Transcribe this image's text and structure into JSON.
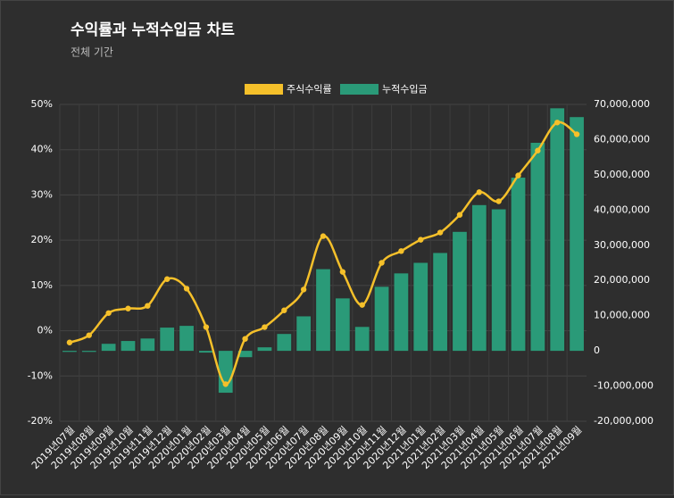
{
  "chart_data": {
    "type": "bar_line",
    "title": "수익률과 누적수입금 차트",
    "subtitle": "전체 기간",
    "categories": [
      "2019년07월",
      "2019년08월",
      "2019년09월",
      "2019년10월",
      "2019년11월",
      "2019년12월",
      "2020년01월",
      "2020년02월",
      "2020년03월",
      "2020년04월",
      "2020년05월",
      "2020년06월",
      "2020년07월",
      "2020년08월",
      "2020년09월",
      "2020년10월",
      "2020년11월",
      "2020년12월",
      "2021년01월",
      "2021년02월",
      "2021년03월",
      "2021년04월",
      "2021년05월",
      "2021년06월",
      "2021년07월",
      "2021년08월",
      "2021년09월"
    ],
    "series": [
      {
        "name": "주식수익률",
        "type": "line",
        "color": "#f5c02a",
        "axis": "y",
        "values": [
          -2.6,
          -1.0,
          3.9,
          4.9,
          5.5,
          11.4,
          9.3,
          0.8,
          -11.8,
          -1.8,
          0.8,
          4.5,
          9.1,
          20.9,
          13.0,
          5.7,
          15.0,
          17.6,
          20.1,
          21.7,
          25.6,
          30.6,
          28.6,
          34.3,
          39.8,
          46.0,
          43.4
        ]
      },
      {
        "name": "누적수입금",
        "type": "bar",
        "color": "#2a9a78",
        "axis": "y2",
        "values": [
          -300000,
          -300000,
          2000000,
          2800000,
          3500000,
          6600000,
          7100000,
          -500000,
          -11900000,
          -1800000,
          1000000,
          4800000,
          9800000,
          23200000,
          14900000,
          6800000,
          18200000,
          22000000,
          25000000,
          27800000,
          33800000,
          41400000,
          40200000,
          49200000,
          59100000,
          68900000,
          66400000
        ]
      }
    ],
    "ylim": [
      -20,
      50
    ],
    "yticks": [
      {
        "value": -20,
        "label": "-20%"
      },
      {
        "value": -10,
        "label": "-10%"
      },
      {
        "value": 0,
        "label": "0%"
      },
      {
        "value": 10,
        "label": "10%"
      },
      {
        "value": 20,
        "label": "20%"
      },
      {
        "value": 30,
        "label": "30%"
      },
      {
        "value": 40,
        "label": "40%"
      },
      {
        "value": 50,
        "label": "50%"
      }
    ],
    "y2lim": [
      -20000000,
      70000000
    ],
    "y2ticks": [
      {
        "value": -20000000,
        "label": "-20,000,000"
      },
      {
        "value": -10000000,
        "label": "-10,000,000"
      },
      {
        "value": 0,
        "label": "0"
      },
      {
        "value": 10000000,
        "label": "10,000,000"
      },
      {
        "value": 20000000,
        "label": "20,000,000"
      },
      {
        "value": 30000000,
        "label": "30,000,000"
      },
      {
        "value": 40000000,
        "label": "40,000,000"
      },
      {
        "value": 50000000,
        "label": "50,000,000"
      },
      {
        "value": 60000000,
        "label": "60,000,000"
      },
      {
        "value": 70000000,
        "label": "70,000,000"
      }
    ],
    "grid": true,
    "legend": "top"
  }
}
